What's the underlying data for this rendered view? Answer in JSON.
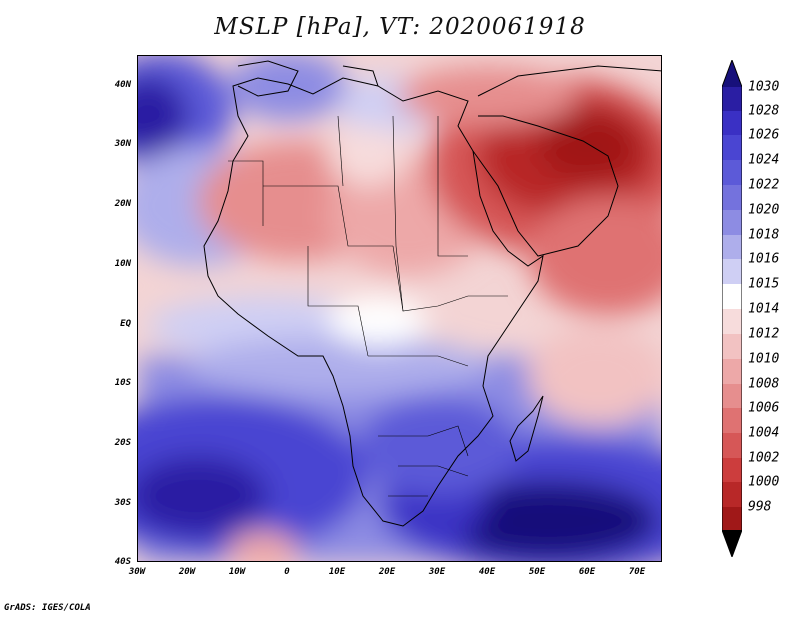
{
  "title": "MSLP [hPa], VT: 2020061918",
  "credit": "GrADS: IGES/COLA",
  "map": {
    "variable": "Mean Sea Level Pressure",
    "units": "hPa",
    "valid_time": "2020061918",
    "region": "Africa",
    "lon_range": [
      -30,
      75
    ],
    "lat_range": [
      -40,
      45
    ]
  },
  "lat_ticks": [
    "40N",
    "30N",
    "20N",
    "10N",
    "EQ",
    "10S",
    "20S",
    "30S",
    "40S"
  ],
  "lat_values": [
    40,
    30,
    20,
    10,
    0,
    -10,
    -20,
    -30,
    -40
  ],
  "lon_ticks": [
    "30W",
    "20W",
    "10W",
    "0",
    "10E",
    "20E",
    "30E",
    "40E",
    "50E",
    "60E",
    "70E"
  ],
  "lon_values": [
    -30,
    -20,
    -10,
    0,
    10,
    20,
    30,
    40,
    50,
    60,
    70
  ],
  "colorbar": {
    "levels": [
      "1030",
      "1028",
      "1026",
      "1024",
      "1022",
      "1020",
      "1018",
      "1016",
      "1015",
      "1014",
      "1012",
      "1010",
      "1008",
      "1006",
      "1004",
      "1002",
      "1000",
      "998"
    ],
    "colors": [
      "#17107a",
      "#2a1ea3",
      "#3a30c4",
      "#4a45d2",
      "#5c5ad8",
      "#7472dd",
      "#8d8ce3",
      "#aeaeeb",
      "#cfcff4",
      "#ffffff",
      "#f7dcdc",
      "#f2c2c2",
      "#eda8a8",
      "#e68e8e",
      "#df7272",
      "#d65757",
      "#cc3d3d",
      "#b82828",
      "#a01818"
    ]
  }
}
